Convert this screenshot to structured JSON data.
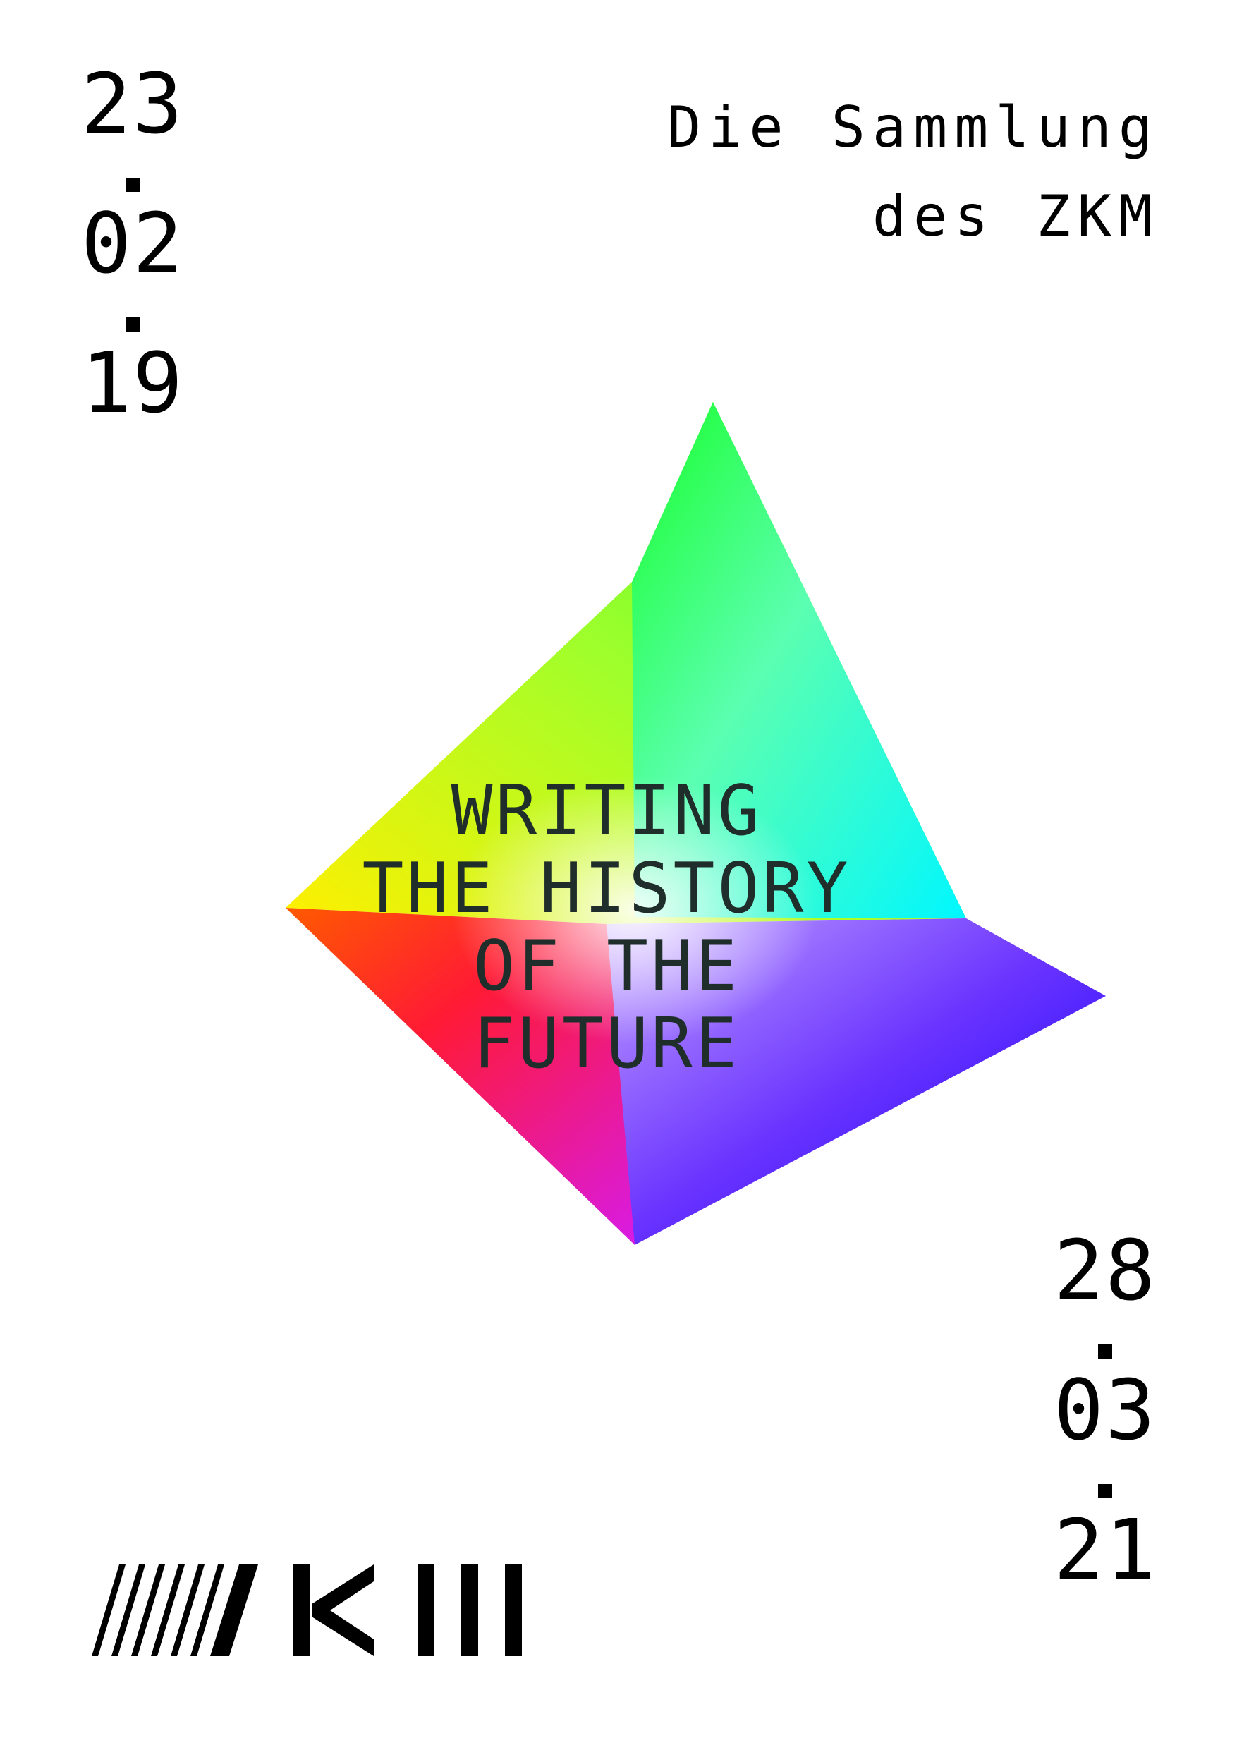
{
  "header": {
    "line1": "Die Sammlung",
    "line2": "des ZKM"
  },
  "start_date": {
    "day": "23",
    "month": "02",
    "year": "19"
  },
  "end_date": {
    "day": "28",
    "month": "03",
    "year": "21"
  },
  "title": {
    "line1": "WRITING",
    "line2": "THE HISTORY",
    "line3": "OF THE",
    "line4": "FUTURE"
  },
  "logo": {
    "text": "ZKM",
    "icon": "zkm-logo"
  },
  "colors": {
    "background": "#ffffff",
    "text": "#000000",
    "title_text": "#1f2d2b"
  }
}
